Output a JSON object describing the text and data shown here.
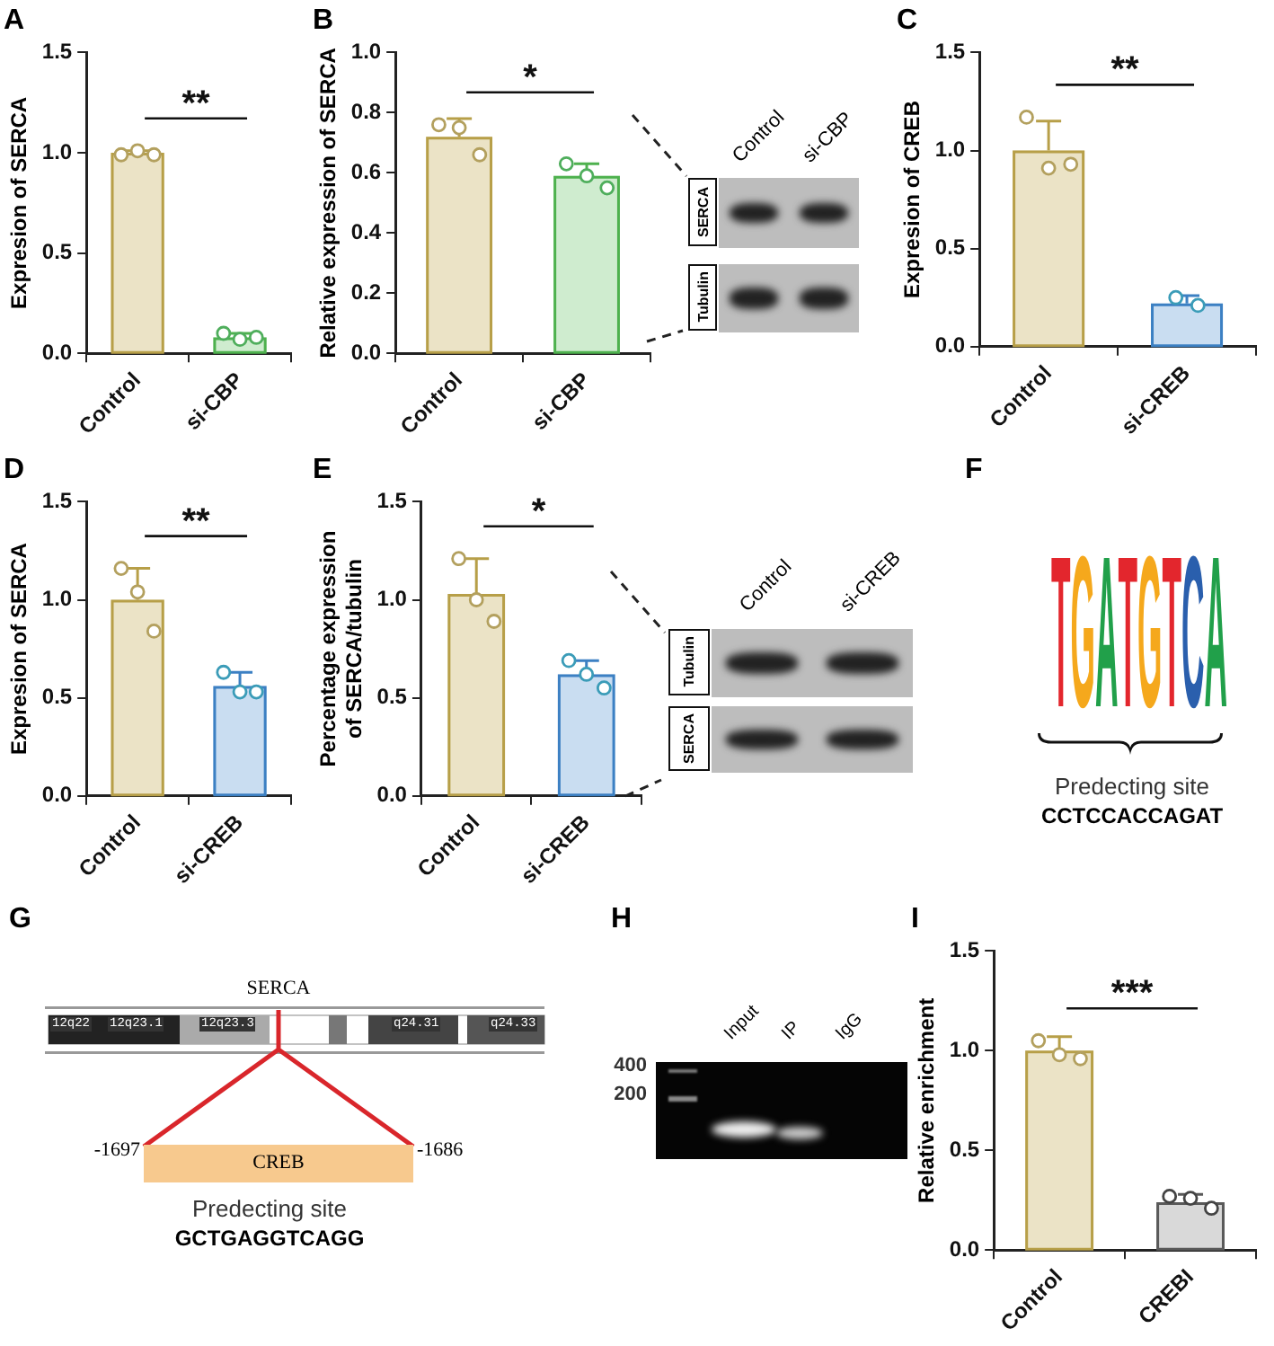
{
  "chart_data": [
    {
      "type": "bar",
      "title": "A",
      "ylabel": "Expresion of SERCA",
      "categories": [
        "Control",
        "si-CBP"
      ],
      "ylim": [
        0,
        1.5
      ],
      "yticks": [
        {
          "value": 0,
          "label": "0.0"
        },
        {
          "value": 0.5,
          "label": "0.5"
        },
        {
          "value": 1,
          "label": "1.0"
        },
        {
          "value": 1.5,
          "label": "1.5"
        }
      ],
      "annotations": [
        "**"
      ],
      "series": [
        {
          "values": [
            1.0,
            0.08
          ],
          "colors": [
            "#ebe3c6",
            "#cfeccf"
          ],
          "errors": [
            [
              1.0,
              1.01
            ],
            [
              0.08,
              0.1
            ]
          ]
        },
        {
          "type": "scatter",
          "x": [
            "Control",
            "Control",
            "Control",
            "si-CBP",
            "si-CBP",
            "si-CBP"
          ],
          "values": [
            0.99,
            1.01,
            0.99,
            0.1,
            0.07,
            0.08
          ],
          "colors": [
            "#b3a05e",
            "#b3a05e",
            "#b3a05e",
            "#4fae5c",
            "#4fae5c",
            "#4fae5c"
          ]
        }
      ]
    },
    {
      "type": "bar",
      "title": "B",
      "ylabel": "Relative expression of SERCA",
      "categories": [
        "Control",
        "si-CBP"
      ],
      "ylim": [
        0,
        1
      ],
      "yticks": [
        {
          "value": 0,
          "label": "0.0"
        },
        {
          "value": 0.2,
          "label": "0.2"
        },
        {
          "value": 0.4,
          "label": "0.4"
        },
        {
          "value": 0.6,
          "label": "0.6"
        },
        {
          "value": 0.8,
          "label": "0.8"
        },
        {
          "value": 1,
          "label": "1.0"
        }
      ],
      "annotations": [
        "*"
      ],
      "series": [
        {
          "values": [
            0.72,
            0.59
          ],
          "colors": [
            "#ebe3c6",
            "#cfeccf"
          ],
          "errors": [
            [
              0.72,
              0.78
            ],
            [
              0.59,
              0.63
            ]
          ]
        },
        {
          "type": "scatter",
          "x": [
            "Control",
            "Control",
            "Control",
            "si-CBP",
            "si-CBP",
            "si-CBP"
          ],
          "values": [
            0.76,
            0.75,
            0.66,
            0.63,
            0.59,
            0.55
          ],
          "colors": [
            "#b3a05e",
            "#b3a05e",
            "#b3a05e",
            "#4fae5c",
            "#4fae5c",
            "#4fae5c"
          ]
        }
      ]
    },
    {
      "type": "other",
      "categories": [
        "Control",
        "si-CBP"
      ],
      "y_categories": [
        "SERCA",
        "Tubulin"
      ]
    },
    {
      "type": "bar",
      "title": "C",
      "ylabel": "Expresion of CREB",
      "categories": [
        "Control",
        "si-CREB"
      ],
      "ylim": [
        0,
        1.5
      ],
      "yticks": [
        {
          "value": 0,
          "label": "0.0"
        },
        {
          "value": 0.5,
          "label": "0.5"
        },
        {
          "value": 1,
          "label": "1.0"
        },
        {
          "value": 1.5,
          "label": "1.5"
        }
      ],
      "annotations": [
        "**"
      ],
      "series": [
        {
          "values": [
            1.0,
            0.22
          ],
          "colors": [
            "#ebe3c6",
            "#c9ddf1"
          ],
          "errors": [
            [
              1.0,
              1.15
            ],
            [
              0.22,
              0.26
            ]
          ]
        },
        {
          "type": "scatter",
          "x": [
            "Control",
            "Control",
            "Control",
            "si-CREB",
            "si-CREB"
          ],
          "values": [
            1.17,
            0.91,
            0.93,
            0.25,
            0.21
          ],
          "colors": [
            "#b3a05e",
            "#b3a05e",
            "#b3a05e",
            "#3b9cb8",
            "#3b9cb8"
          ]
        }
      ]
    },
    {
      "type": "bar",
      "title": "D",
      "ylabel": "Expresion of SERCA",
      "categories": [
        "Control",
        "si-CREB"
      ],
      "ylim": [
        0,
        1.5
      ],
      "yticks": [
        {
          "value": 0,
          "label": "0.0"
        },
        {
          "value": 0.5,
          "label": "0.5"
        },
        {
          "value": 1,
          "label": "1.0"
        },
        {
          "value": 1.5,
          "label": "1.5"
        }
      ],
      "annotations": [
        "**"
      ],
      "series": [
        {
          "values": [
            1.0,
            0.56
          ],
          "colors": [
            "#ebe3c6",
            "#c9ddf1"
          ],
          "errors": [
            [
              1.0,
              1.16
            ],
            [
              0.56,
              0.63
            ]
          ]
        },
        {
          "type": "scatter",
          "x": [
            "Control",
            "Control",
            "Control",
            "si-CREB",
            "si-CREB",
            "si-CREB"
          ],
          "values": [
            1.16,
            1.04,
            0.84,
            0.63,
            0.53,
            0.53
          ],
          "colors": [
            "#b3a05e",
            "#b3a05e",
            "#b3a05e",
            "#3b9cb8",
            "#3b9cb8",
            "#3b9cb8"
          ]
        }
      ]
    },
    {
      "type": "bar",
      "title": "E",
      "ylabel": "Percentage expression of SERCA/tubulin",
      "categories": [
        "Control",
        "si-CREB"
      ],
      "ylim": [
        0,
        1.5
      ],
      "yticks": [
        {
          "value": 0,
          "label": "0.0"
        },
        {
          "value": 0.5,
          "label": "0.5"
        },
        {
          "value": 1,
          "label": "1.0"
        },
        {
          "value": 1.5,
          "label": "1.5"
        }
      ],
      "annotations": [
        "*"
      ],
      "series": [
        {
          "values": [
            1.03,
            0.62
          ],
          "colors": [
            "#ebe3c6",
            "#c9ddf1"
          ],
          "errors": [
            [
              1.03,
              1.21
            ],
            [
              0.62,
              0.69
            ]
          ]
        },
        {
          "type": "scatter",
          "x": [
            "Control",
            "Control",
            "Control",
            "si-CREB",
            "si-CREB",
            "si-CREB"
          ],
          "values": [
            1.21,
            1.0,
            0.89,
            0.69,
            0.62,
            0.55
          ],
          "colors": [
            "#b3a05e",
            "#b3a05e",
            "#b3a05e",
            "#3b9cb8",
            "#3b9cb8",
            "#3b9cb8"
          ]
        }
      ]
    },
    {
      "type": "other",
      "categories": [
        "Control",
        "si-CREB"
      ],
      "y_categories": [
        "Tubulin",
        "SERCA"
      ]
    },
    {
      "type": "other",
      "title": "F",
      "annotations": [
        "TGATGTCA",
        "Predecting site",
        "CCTCCACCAGAT"
      ],
      "colors": [
        "#e3262d",
        "#f5a81c",
        "#21a04a",
        "#e3262d",
        "#f5a81c",
        "#e3262d",
        "#2a5fad",
        "#21a04a"
      ]
    },
    {
      "type": "other",
      "title": "G",
      "categories": [
        "12q22",
        "12q23.1",
        "12q23.3",
        "q24.31",
        "q24.33"
      ],
      "annotations": [
        "SERCA",
        "-1697",
        "-1686",
        "CREB",
        "Predecting site",
        "GCTGAGGTCAGG"
      ]
    },
    {
      "type": "other",
      "title": "H",
      "categories": [
        "Input",
        "IP",
        "IgG"
      ],
      "y_categories": [
        "400",
        "200"
      ]
    },
    {
      "type": "bar",
      "title": "I",
      "ylabel": "Relative enrichment",
      "categories": [
        "Control",
        "CREBI"
      ],
      "ylim": [
        0,
        1.5
      ],
      "yticks": [
        {
          "value": 0,
          "label": "0.0"
        },
        {
          "value": 0.5,
          "label": "0.5"
        },
        {
          "value": 1,
          "label": "1.0"
        },
        {
          "value": 1.5,
          "label": "1.5"
        }
      ],
      "annotations": [
        "***"
      ],
      "series": [
        {
          "values": [
            1.0,
            0.24
          ],
          "colors": [
            "#ebe3c6",
            "#d9d9d9"
          ],
          "errors": [
            [
              1.0,
              1.07
            ],
            [
              0.24,
              0.28
            ]
          ]
        },
        {
          "type": "scatter",
          "x": [
            "Control",
            "Control",
            "Control",
            "CREBI",
            "CREBI",
            "CREBI"
          ],
          "values": [
            1.05,
            0.98,
            0.96,
            0.27,
            0.26,
            0.21
          ],
          "colors": [
            "#b3a05e",
            "#b3a05e",
            "#b3a05e",
            "#444444",
            "#444444",
            "#444444"
          ]
        }
      ]
    }
  ]
}
